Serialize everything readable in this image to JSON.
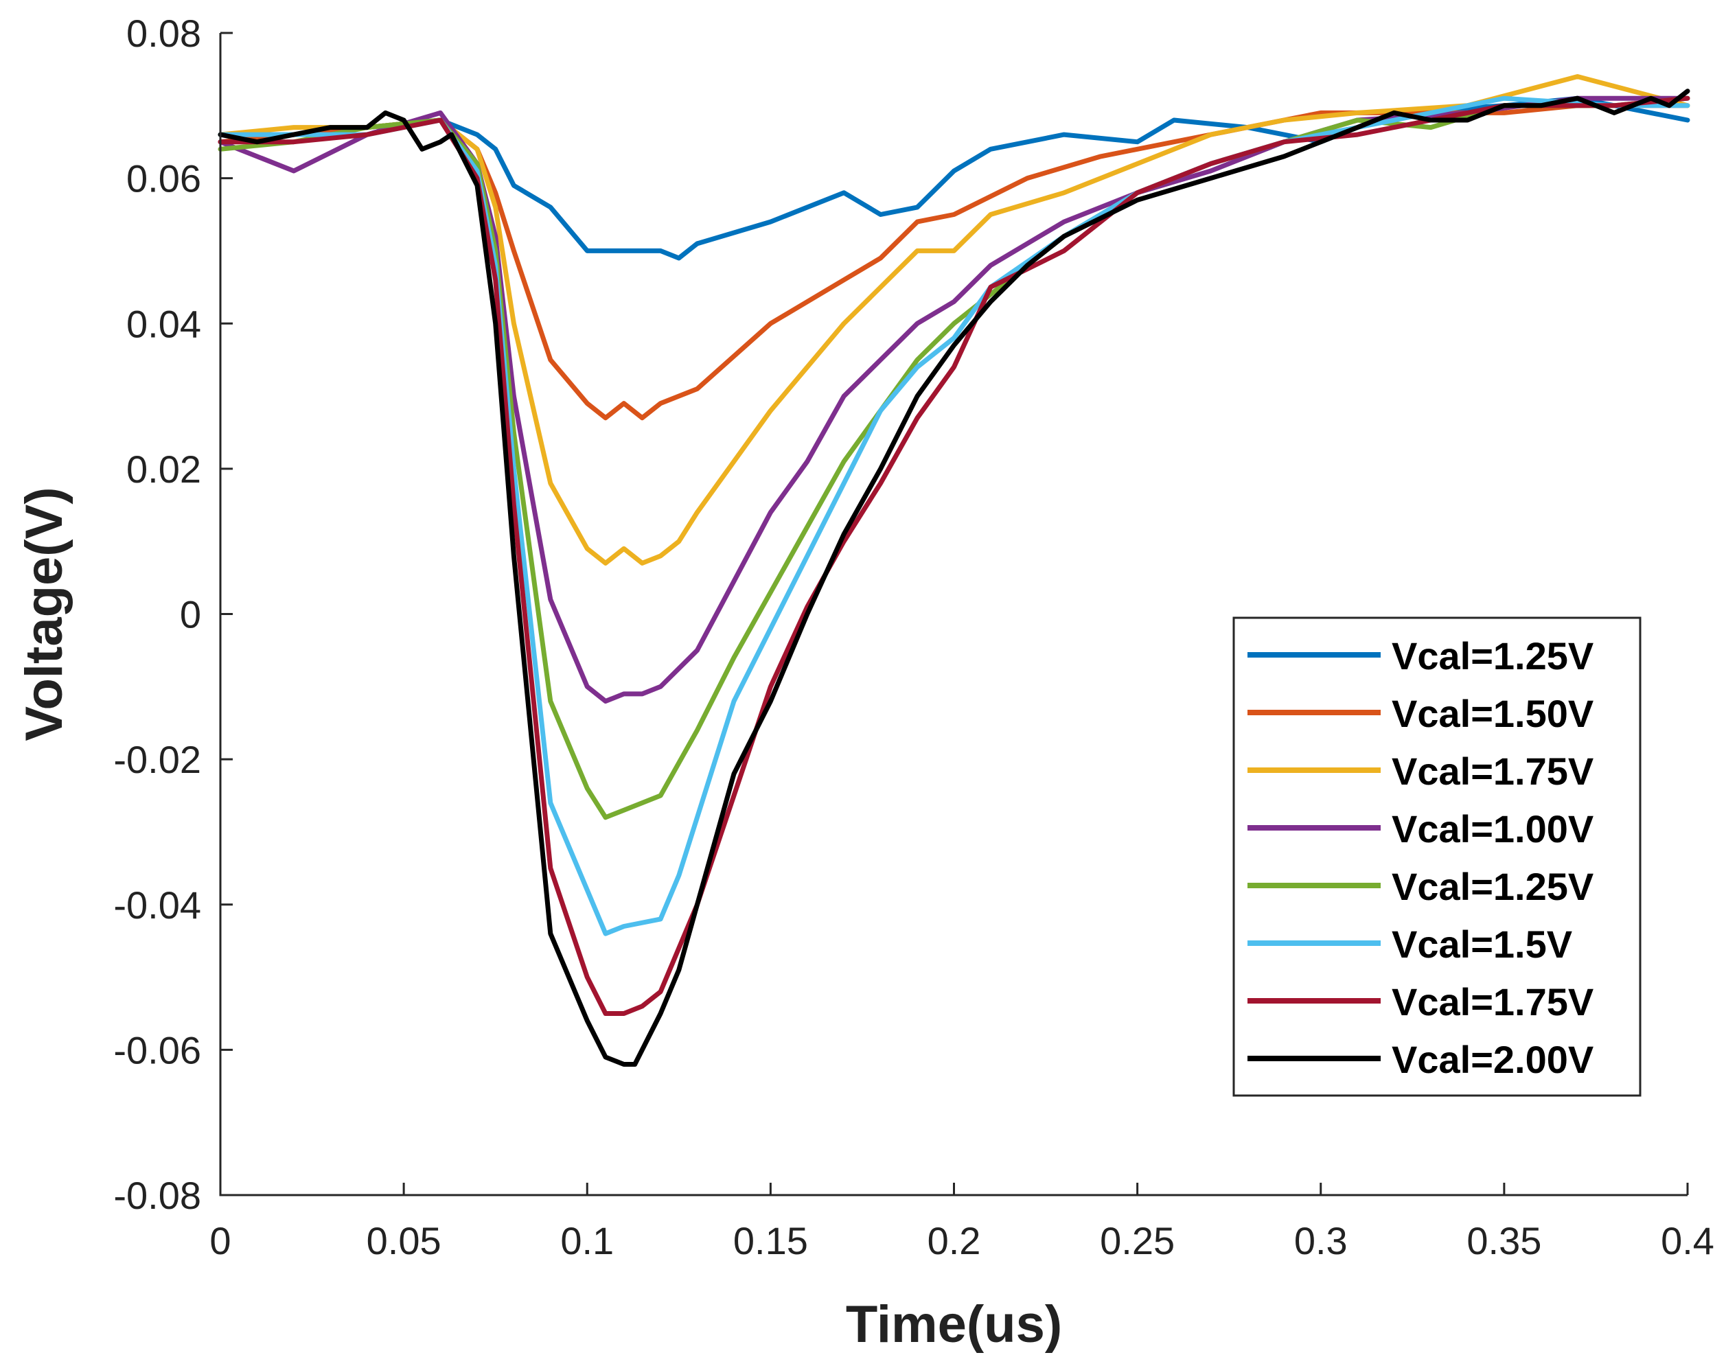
{
  "chart_data": {
    "type": "line",
    "title": "",
    "xlabel": "Time(us)",
    "ylabel": "Voltage(V)",
    "xlim": [
      0,
      0.4
    ],
    "ylim": [
      -0.08,
      0.08
    ],
    "xticks": [
      0,
      0.05,
      0.1,
      0.15,
      0.2,
      0.25,
      0.3,
      0.35,
      0.4
    ],
    "xtick_labels": [
      "0",
      "0.05",
      "0.1",
      "0.15",
      "0.2",
      "0.25",
      "0.3",
      "0.35",
      "0.4"
    ],
    "yticks": [
      0.08,
      0.06,
      0.04,
      0.02,
      0,
      -0.02,
      -0.04,
      -0.06,
      -0.08
    ],
    "ytick_labels": [
      "0.08",
      "0.06",
      "0.04",
      "0.02",
      "0",
      "-0.02",
      "-0.04",
      "-0.06",
      "-0.08"
    ],
    "grid": false,
    "legend_position": "lower-right",
    "series": [
      {
        "name": "Vcal=1.25V",
        "color": "#0072BD",
        "x": [
          0,
          0.02,
          0.04,
          0.06,
          0.07,
          0.075,
          0.08,
          0.09,
          0.1,
          0.11,
          0.12,
          0.125,
          0.13,
          0.15,
          0.17,
          0.18,
          0.19,
          0.2,
          0.21,
          0.23,
          0.25,
          0.26,
          0.28,
          0.3,
          0.32,
          0.35,
          0.37,
          0.39,
          0.4
        ],
        "y": [
          0.066,
          0.066,
          0.067,
          0.068,
          0.066,
          0.064,
          0.059,
          0.056,
          0.05,
          0.05,
          0.05,
          0.049,
          0.051,
          0.054,
          0.058,
          0.055,
          0.056,
          0.061,
          0.064,
          0.066,
          0.065,
          0.068,
          0.067,
          0.065,
          0.069,
          0.07,
          0.071,
          0.069,
          0.068
        ]
      },
      {
        "name": "Vcal=1.50V",
        "color": "#D95319",
        "x": [
          0,
          0.02,
          0.04,
          0.06,
          0.07,
          0.075,
          0.08,
          0.09,
          0.1,
          0.105,
          0.11,
          0.115,
          0.12,
          0.13,
          0.15,
          0.17,
          0.18,
          0.19,
          0.2,
          0.22,
          0.24,
          0.26,
          0.28,
          0.3,
          0.33,
          0.35,
          0.37,
          0.4
        ],
        "y": [
          0.065,
          0.066,
          0.067,
          0.068,
          0.064,
          0.058,
          0.05,
          0.035,
          0.029,
          0.027,
          0.029,
          0.027,
          0.029,
          0.031,
          0.04,
          0.046,
          0.049,
          0.054,
          0.055,
          0.06,
          0.063,
          0.065,
          0.067,
          0.069,
          0.069,
          0.069,
          0.07,
          0.07
        ]
      },
      {
        "name": "Vcal=1.75V",
        "color": "#EDB120",
        "x": [
          0,
          0.02,
          0.04,
          0.06,
          0.07,
          0.075,
          0.08,
          0.09,
          0.1,
          0.105,
          0.11,
          0.115,
          0.12,
          0.125,
          0.13,
          0.15,
          0.17,
          0.19,
          0.2,
          0.21,
          0.23,
          0.25,
          0.27,
          0.29,
          0.31,
          0.34,
          0.37,
          0.4
        ],
        "y": [
          0.066,
          0.067,
          0.067,
          0.068,
          0.064,
          0.056,
          0.04,
          0.018,
          0.009,
          0.007,
          0.009,
          0.007,
          0.008,
          0.01,
          0.014,
          0.028,
          0.04,
          0.05,
          0.05,
          0.055,
          0.058,
          0.062,
          0.066,
          0.068,
          0.069,
          0.07,
          0.074,
          0.07
        ]
      },
      {
        "name": "Vcal=1.00V",
        "color": "#7E2F8E",
        "x": [
          0,
          0.02,
          0.04,
          0.06,
          0.07,
          0.075,
          0.08,
          0.09,
          0.1,
          0.105,
          0.11,
          0.115,
          0.12,
          0.13,
          0.15,
          0.16,
          0.17,
          0.18,
          0.19,
          0.2,
          0.21,
          0.23,
          0.25,
          0.27,
          0.29,
          0.31,
          0.34,
          0.37,
          0.4
        ],
        "y": [
          0.065,
          0.061,
          0.066,
          0.069,
          0.062,
          0.052,
          0.03,
          0.002,
          -0.01,
          -0.012,
          -0.011,
          -0.011,
          -0.01,
          -0.005,
          0.014,
          0.021,
          0.03,
          0.035,
          0.04,
          0.043,
          0.048,
          0.054,
          0.058,
          0.061,
          0.065,
          0.068,
          0.069,
          0.071,
          0.071
        ]
      },
      {
        "name": "Vcal=1.25V",
        "color": "#77AC30",
        "x": [
          0,
          0.02,
          0.04,
          0.06,
          0.07,
          0.075,
          0.08,
          0.09,
          0.1,
          0.105,
          0.11,
          0.12,
          0.13,
          0.14,
          0.15,
          0.16,
          0.17,
          0.18,
          0.19,
          0.2,
          0.21,
          0.23,
          0.25,
          0.27,
          0.29,
          0.31,
          0.33,
          0.35,
          0.38,
          0.4
        ],
        "y": [
          0.064,
          0.065,
          0.067,
          0.068,
          0.062,
          0.05,
          0.025,
          -0.012,
          -0.024,
          -0.028,
          -0.027,
          -0.025,
          -0.016,
          -0.006,
          0.003,
          0.012,
          0.021,
          0.028,
          0.035,
          0.04,
          0.044,
          0.052,
          0.058,
          0.062,
          0.065,
          0.068,
          0.067,
          0.07,
          0.07,
          0.071
        ]
      },
      {
        "name": "Vcal=1.5V",
        "color": "#4DBEEE",
        "x": [
          0,
          0.02,
          0.04,
          0.06,
          0.07,
          0.075,
          0.08,
          0.09,
          0.1,
          0.105,
          0.11,
          0.12,
          0.125,
          0.13,
          0.14,
          0.15,
          0.16,
          0.17,
          0.18,
          0.19,
          0.2,
          0.21,
          0.23,
          0.25,
          0.27,
          0.29,
          0.31,
          0.33,
          0.35,
          0.38,
          0.4
        ],
        "y": [
          0.066,
          0.066,
          0.066,
          0.068,
          0.061,
          0.048,
          0.02,
          -0.026,
          -0.038,
          -0.044,
          -0.043,
          -0.042,
          -0.036,
          -0.028,
          -0.012,
          -0.002,
          0.008,
          0.018,
          0.028,
          0.034,
          0.038,
          0.045,
          0.052,
          0.058,
          0.062,
          0.065,
          0.067,
          0.069,
          0.071,
          0.07,
          0.07
        ]
      },
      {
        "name": "Vcal=1.75V",
        "color": "#A2142F",
        "x": [
          0,
          0.02,
          0.04,
          0.06,
          0.07,
          0.075,
          0.08,
          0.09,
          0.1,
          0.105,
          0.11,
          0.115,
          0.12,
          0.13,
          0.14,
          0.15,
          0.16,
          0.17,
          0.18,
          0.19,
          0.2,
          0.21,
          0.23,
          0.25,
          0.27,
          0.29,
          0.31,
          0.33,
          0.35,
          0.38,
          0.4
        ],
        "y": [
          0.065,
          0.065,
          0.066,
          0.068,
          0.06,
          0.046,
          0.015,
          -0.035,
          -0.05,
          -0.055,
          -0.055,
          -0.054,
          -0.052,
          -0.04,
          -0.025,
          -0.01,
          0.001,
          0.01,
          0.018,
          0.027,
          0.034,
          0.045,
          0.05,
          0.058,
          0.062,
          0.065,
          0.066,
          0.068,
          0.07,
          0.07,
          0.071
        ]
      },
      {
        "name": "Vcal=2.00V",
        "color": "#000000",
        "x": [
          0,
          0.01,
          0.02,
          0.03,
          0.04,
          0.045,
          0.05,
          0.055,
          0.06,
          0.063,
          0.07,
          0.075,
          0.08,
          0.09,
          0.1,
          0.105,
          0.11,
          0.113,
          0.12,
          0.125,
          0.13,
          0.14,
          0.15,
          0.16,
          0.17,
          0.18,
          0.19,
          0.2,
          0.21,
          0.22,
          0.23,
          0.25,
          0.27,
          0.29,
          0.3,
          0.31,
          0.32,
          0.33,
          0.34,
          0.35,
          0.36,
          0.37,
          0.38,
          0.39,
          0.395,
          0.4
        ],
        "y": [
          0.066,
          0.065,
          0.066,
          0.067,
          0.067,
          0.069,
          0.068,
          0.064,
          0.065,
          0.066,
          0.059,
          0.04,
          0.008,
          -0.044,
          -0.056,
          -0.061,
          -0.062,
          -0.062,
          -0.055,
          -0.049,
          -0.04,
          -0.022,
          -0.012,
          0.0,
          0.011,
          0.02,
          0.03,
          0.037,
          0.043,
          0.048,
          0.052,
          0.057,
          0.06,
          0.063,
          0.065,
          0.067,
          0.069,
          0.068,
          0.068,
          0.07,
          0.07,
          0.071,
          0.069,
          0.071,
          0.07,
          0.072
        ]
      }
    ]
  }
}
